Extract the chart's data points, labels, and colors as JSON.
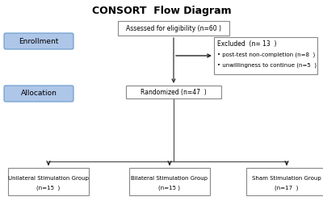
{
  "title": "CONSORT  Flow Diagram",
  "title_fontsize": 9,
  "title_fontweight": "bold",
  "background_color": "#ffffff",
  "enrollment_label": "Enrollment",
  "allocation_label": "Allocation",
  "sidebar_box_color": "#aec6e8",
  "sidebar_ec": "#6699cc",
  "main_box_edge_color": "#888888",
  "main_box_fill": "#ffffff",
  "assessed_text": "Assessed for eligibility (n=60 )",
  "excluded_title": "Excluded  (n= 13  )",
  "excluded_item1": "post-test non-completion (n=8  )",
  "excluded_item2": "unwillingness to continue (n=5  )",
  "randomized_text": "Randomized (n=47  )",
  "group1_line1": "Unilateral Stimulation Group",
  "group1_line2": "(n=15  )",
  "group2_line1": "Bilateral Stimulation Group",
  "group2_line2": "(n=15 )",
  "group3_line1": "Sham Stimulation Group",
  "group3_line2": "(n=17  )",
  "arrow_color": "#333333",
  "line_color": "#555555",
  "text_fontsize": 5.5,
  "small_fontsize": 5.0
}
